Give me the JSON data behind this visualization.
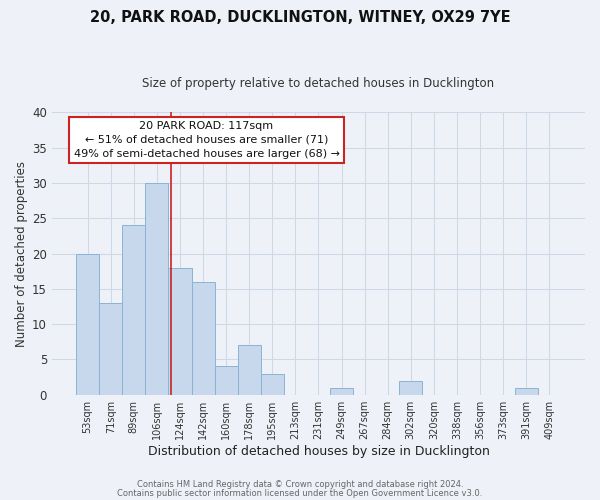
{
  "title": "20, PARK ROAD, DUCKLINGTON, WITNEY, OX29 7YE",
  "subtitle": "Size of property relative to detached houses in Ducklington",
  "xlabel": "Distribution of detached houses by size in Ducklington",
  "ylabel": "Number of detached properties",
  "bar_labels": [
    "53sqm",
    "71sqm",
    "89sqm",
    "106sqm",
    "124sqm",
    "142sqm",
    "160sqm",
    "178sqm",
    "195sqm",
    "213sqm",
    "231sqm",
    "249sqm",
    "267sqm",
    "284sqm",
    "302sqm",
    "320sqm",
    "338sqm",
    "356sqm",
    "373sqm",
    "391sqm",
    "409sqm"
  ],
  "bar_values": [
    20,
    13,
    24,
    30,
    18,
    16,
    4,
    7,
    3,
    0,
    0,
    1,
    0,
    0,
    2,
    0,
    0,
    0,
    0,
    1,
    0
  ],
  "bar_color": "#c8d8ec",
  "bar_edge_color": "#8ab4d4",
  "grid_color": "#d0d8e8",
  "background_color": "#eef2f8",
  "annotation_box_text": "20 PARK ROAD: 117sqm\n← 51% of detached houses are smaller (71)\n49% of semi-detached houses are larger (68) →",
  "annotation_box_color": "#ffffff",
  "annotation_box_edge_color": "#cc2222",
  "vline_color": "#cc2222",
  "ylim": [
    0,
    40
  ],
  "yticks": [
    0,
    5,
    10,
    15,
    20,
    25,
    30,
    35,
    40
  ],
  "footer_line1": "Contains HM Land Registry data © Crown copyright and database right 2024.",
  "footer_line2": "Contains public sector information licensed under the Open Government Licence v3.0."
}
